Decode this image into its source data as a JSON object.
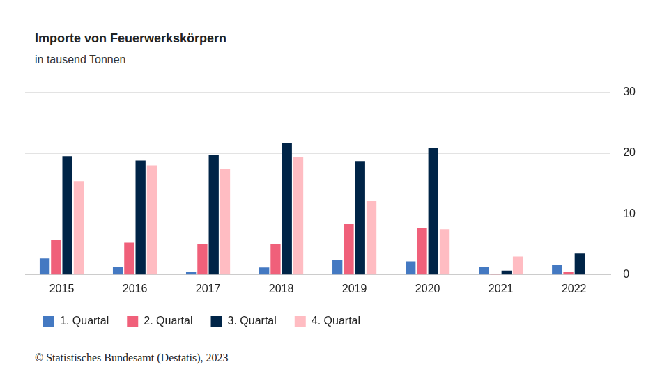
{
  "chart_data": {
    "type": "bar",
    "title": "Importe von Feuerwerkskörpern",
    "subtitle": "in tausend Tonnen",
    "source": "© Statistisches Bundesamt (Destatis), 2023",
    "categories": [
      "2015",
      "2016",
      "2017",
      "2018",
      "2019",
      "2020",
      "2021",
      "2022"
    ],
    "series": [
      {
        "name": "1. Quartal",
        "color": "#4479c2",
        "values": [
          2.7,
          1.3,
          0.5,
          1.2,
          2.5,
          2.2,
          1.3,
          1.6
        ]
      },
      {
        "name": "2. Quartal",
        "color": "#f0607a",
        "values": [
          5.7,
          5.3,
          5.0,
          5.0,
          8.4,
          7.7,
          0.2,
          0.5
        ]
      },
      {
        "name": "3. Quartal",
        "color": "#002447",
        "values": [
          19.5,
          18.8,
          19.7,
          21.6,
          18.7,
          20.8,
          0.7,
          3.5
        ]
      },
      {
        "name": "4. Quartal",
        "color": "#ffbcc2",
        "values": [
          15.4,
          18.0,
          17.4,
          19.4,
          12.2,
          7.5,
          3.0,
          null
        ]
      }
    ],
    "ylim": [
      0,
      30
    ],
    "yticks": [
      0,
      10,
      20,
      30
    ],
    "grid": true,
    "legend": "bottom"
  }
}
